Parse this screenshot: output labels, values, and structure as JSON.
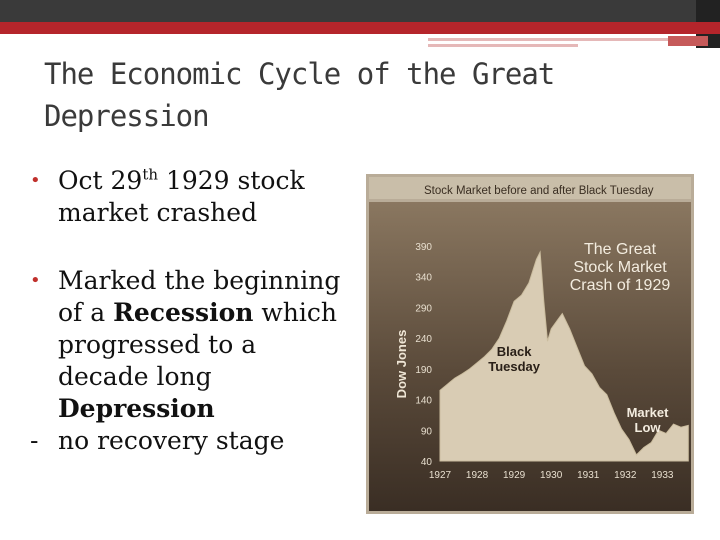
{
  "slide": {
    "title": "The Economic Cycle of the Great Depression",
    "bullet1": {
      "text_before": "Oct 29",
      "superscript": "th",
      "text_after": " 1929 stock market crashed"
    },
    "bullet2": {
      "text_1": " Marked the beginning of a ",
      "bold_1": "Recession",
      "text_2": " which progressed to a decade long ",
      "bold_2": "Depression"
    },
    "dash_line": {
      "dash": "-",
      "text": "no recovery stage"
    }
  },
  "chart_data": {
    "type": "area",
    "title": "Stock Market before and after Black Tuesday",
    "heading": [
      "The Great",
      "Stock Market",
      "Crash of 1929"
    ],
    "ylabel": "Dow Jones",
    "y_ticks": [
      390,
      340,
      290,
      240,
      190,
      140,
      90,
      40
    ],
    "x_ticks": [
      "1927",
      "1928",
      "1929",
      "1930",
      "1931",
      "1932",
      "1933"
    ],
    "ylim": [
      40,
      390
    ],
    "xlim": [
      1927,
      1933.8
    ],
    "annotations": [
      {
        "lines": [
          "Black",
          "Tuesday"
        ],
        "x": 1929.0,
        "y": 195
      },
      {
        "lines": [
          "Market",
          "Low"
        ],
        "x": 1932.6,
        "y": 95
      }
    ],
    "series": [
      {
        "x": [
          1927.0,
          1927.2,
          1927.4,
          1927.6,
          1927.8,
          1928.0,
          1928.2,
          1928.4,
          1928.6,
          1928.8,
          1929.0,
          1929.2,
          1929.4,
          1929.6,
          1929.7,
          1929.8,
          1929.9,
          1930.0,
          1930.2,
          1930.3,
          1930.5,
          1930.7,
          1930.9,
          1931.1,
          1931.3,
          1931.5,
          1931.7,
          1931.9,
          1932.1,
          1932.3,
          1932.5,
          1932.7,
          1932.9,
          1933.1,
          1933.3,
          1933.5,
          1933.7
        ],
        "y": [
          155,
          165,
          175,
          182,
          190,
          200,
          210,
          222,
          240,
          268,
          300,
          310,
          330,
          368,
          380,
          300,
          235,
          255,
          272,
          280,
          255,
          225,
          195,
          182,
          160,
          148,
          118,
          92,
          75,
          50,
          62,
          70,
          90,
          85,
          100,
          95,
          98
        ]
      }
    ]
  }
}
